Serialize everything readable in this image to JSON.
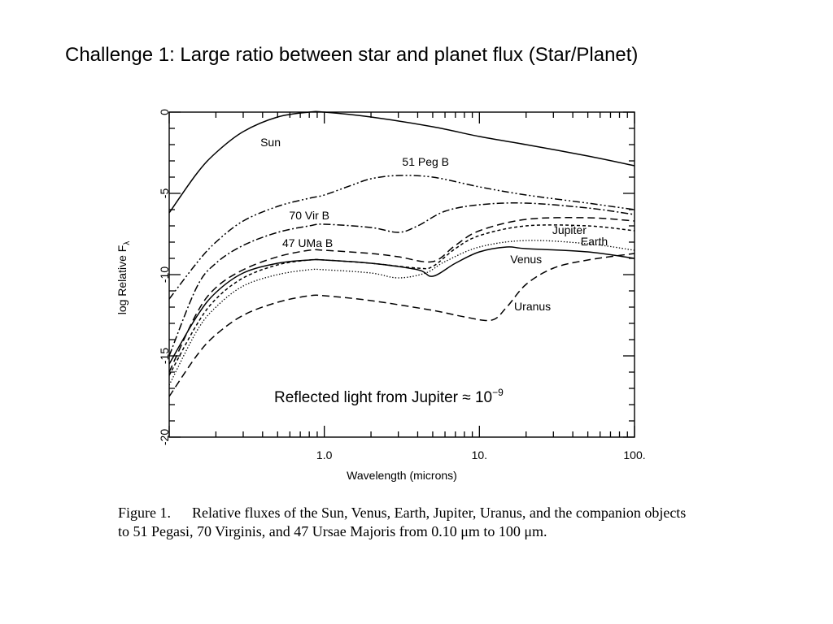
{
  "slide": {
    "title": "Challenge 1: Large ratio between star and planet flux (Star/Planet)"
  },
  "annotation": {
    "text": "Reflected light from Jupiter ≈ 10",
    "exponent": "−9"
  },
  "figure": {
    "caption_label": "Figure 1.",
    "caption_text": "Relative fluxes of the Sun, Venus, Earth, Jupiter, Uranus, and the companion objects to 51 Pegasi, 70 Virginis, and 47 Ursae Majoris from 0.10 μm to 100 μm."
  },
  "chart_data": {
    "type": "line",
    "xlabel": "Wavelength (microns)",
    "ylabel": "log Relative F",
    "ylabel_subscript": "λ",
    "x_scale": "log",
    "xlim": [
      0.1,
      100
    ],
    "ylim": [
      -20,
      0
    ],
    "x_ticks": [
      {
        "value": 1.0,
        "label": "1.0"
      },
      {
        "value": 10,
        "label": "10."
      },
      {
        "value": 100,
        "label": "100."
      }
    ],
    "y_ticks": [
      {
        "value": 0,
        "label": "0"
      },
      {
        "value": -5,
        "label": "-5"
      },
      {
        "value": -10,
        "label": "-10"
      },
      {
        "value": -15,
        "label": "-15"
      },
      {
        "value": -20,
        "label": "-20"
      }
    ],
    "grid": false,
    "series": [
      {
        "name": "Sun",
        "style": "solid",
        "x": [
          0.1,
          0.15,
          0.2,
          0.3,
          0.5,
          0.8,
          1.0,
          2.0,
          5.0,
          10,
          20,
          50,
          100
        ],
        "y": [
          -6.2,
          -3.8,
          -2.5,
          -1.2,
          -0.3,
          0.0,
          0.0,
          -0.3,
          -0.9,
          -1.5,
          -2.0,
          -2.7,
          -3.3
        ],
        "label_at": [
          0.45,
          -2.1
        ]
      },
      {
        "name": "51 Peg B",
        "style": "dashdotdot",
        "x": [
          0.1,
          0.15,
          0.2,
          0.3,
          0.5,
          0.8,
          1.0,
          1.5,
          2.0,
          3.0,
          5.0,
          10,
          20,
          50,
          100
        ],
        "y": [
          -11.5,
          -9.3,
          -8.0,
          -6.7,
          -5.8,
          -5.3,
          -5.1,
          -4.5,
          -4.1,
          -3.9,
          -4.0,
          -4.6,
          -5.1,
          -5.6,
          -6.0
        ],
        "label_at": [
          4.5,
          -3.3
        ]
      },
      {
        "name": "70 Vir B",
        "style": "dashdot",
        "x": [
          0.1,
          0.15,
          0.2,
          0.3,
          0.5,
          0.8,
          1.0,
          2.0,
          3.0,
          4.0,
          6.0,
          10,
          20,
          50,
          100
        ],
        "y": [
          -15.0,
          -10.8,
          -9.3,
          -8.2,
          -7.4,
          -7.0,
          -6.9,
          -7.1,
          -7.4,
          -7.0,
          -6.1,
          -5.7,
          -5.6,
          -5.9,
          -6.3
        ],
        "label_at": [
          0.8,
          -6.6
        ]
      },
      {
        "name": "47 UMa B",
        "style": "longdash",
        "x": [
          0.1,
          0.15,
          0.2,
          0.3,
          0.5,
          0.8,
          1.0,
          2.0,
          3.0,
          5.0,
          7.0,
          10,
          20,
          50,
          100
        ],
        "y": [
          -16.0,
          -12.4,
          -10.8,
          -9.7,
          -8.9,
          -8.5,
          -8.5,
          -8.7,
          -8.9,
          -9.2,
          -8.2,
          -7.3,
          -6.6,
          -6.5,
          -6.7
        ],
        "label_at": [
          0.78,
          -8.3
        ]
      },
      {
        "name": "Jupiter",
        "style": "shortdash",
        "x": [
          0.1,
          0.15,
          0.2,
          0.3,
          0.5,
          0.8,
          1.0,
          2.0,
          4.0,
          5.0,
          7.0,
          10,
          20,
          50,
          100
        ],
        "y": [
          -16.2,
          -13.1,
          -11.5,
          -10.2,
          -9.4,
          -9.1,
          -9.1,
          -9.3,
          -9.6,
          -9.5,
          -8.4,
          -7.6,
          -7.0,
          -7.0,
          -7.3
        ],
        "label_at": [
          38,
          -7.5
        ]
      },
      {
        "name": "Earth",
        "style": "dotted",
        "x": [
          0.1,
          0.15,
          0.2,
          0.3,
          0.5,
          0.8,
          1.0,
          2.0,
          3.0,
          4.5,
          6.0,
          10,
          20,
          50,
          100
        ],
        "y": [
          -16.8,
          -13.5,
          -12.0,
          -10.7,
          -10.0,
          -9.7,
          -9.7,
          -9.9,
          -10.2,
          -9.9,
          -9.2,
          -8.3,
          -7.9,
          -8.1,
          -8.5
        ],
        "label_at": [
          55,
          -8.2
        ]
      },
      {
        "name": "Venus",
        "style": "solid",
        "x": [
          0.1,
          0.15,
          0.2,
          0.3,
          0.5,
          0.8,
          1.0,
          2.0,
          4.0,
          5.0,
          7.0,
          10,
          15,
          20,
          50,
          100
        ],
        "y": [
          -15.5,
          -12.6,
          -11.1,
          -9.9,
          -9.3,
          -9.1,
          -9.1,
          -9.3,
          -9.7,
          -10.1,
          -9.3,
          -8.6,
          -8.3,
          -8.4,
          -8.6,
          -9.0
        ],
        "label_at": [
          20,
          -9.3
        ]
      },
      {
        "name": "Uranus",
        "style": "longdash",
        "x": [
          0.1,
          0.15,
          0.2,
          0.3,
          0.5,
          0.8,
          1.0,
          2.0,
          5.0,
          8.0,
          12,
          15,
          20,
          30,
          50,
          100
        ],
        "y": [
          -17.5,
          -15.0,
          -13.7,
          -12.5,
          -11.7,
          -11.3,
          -11.3,
          -11.6,
          -12.2,
          -12.6,
          -12.8,
          -12.0,
          -10.6,
          -9.6,
          -9.1,
          -8.7
        ],
        "label_at": [
          22,
          -12.2
        ]
      }
    ]
  }
}
